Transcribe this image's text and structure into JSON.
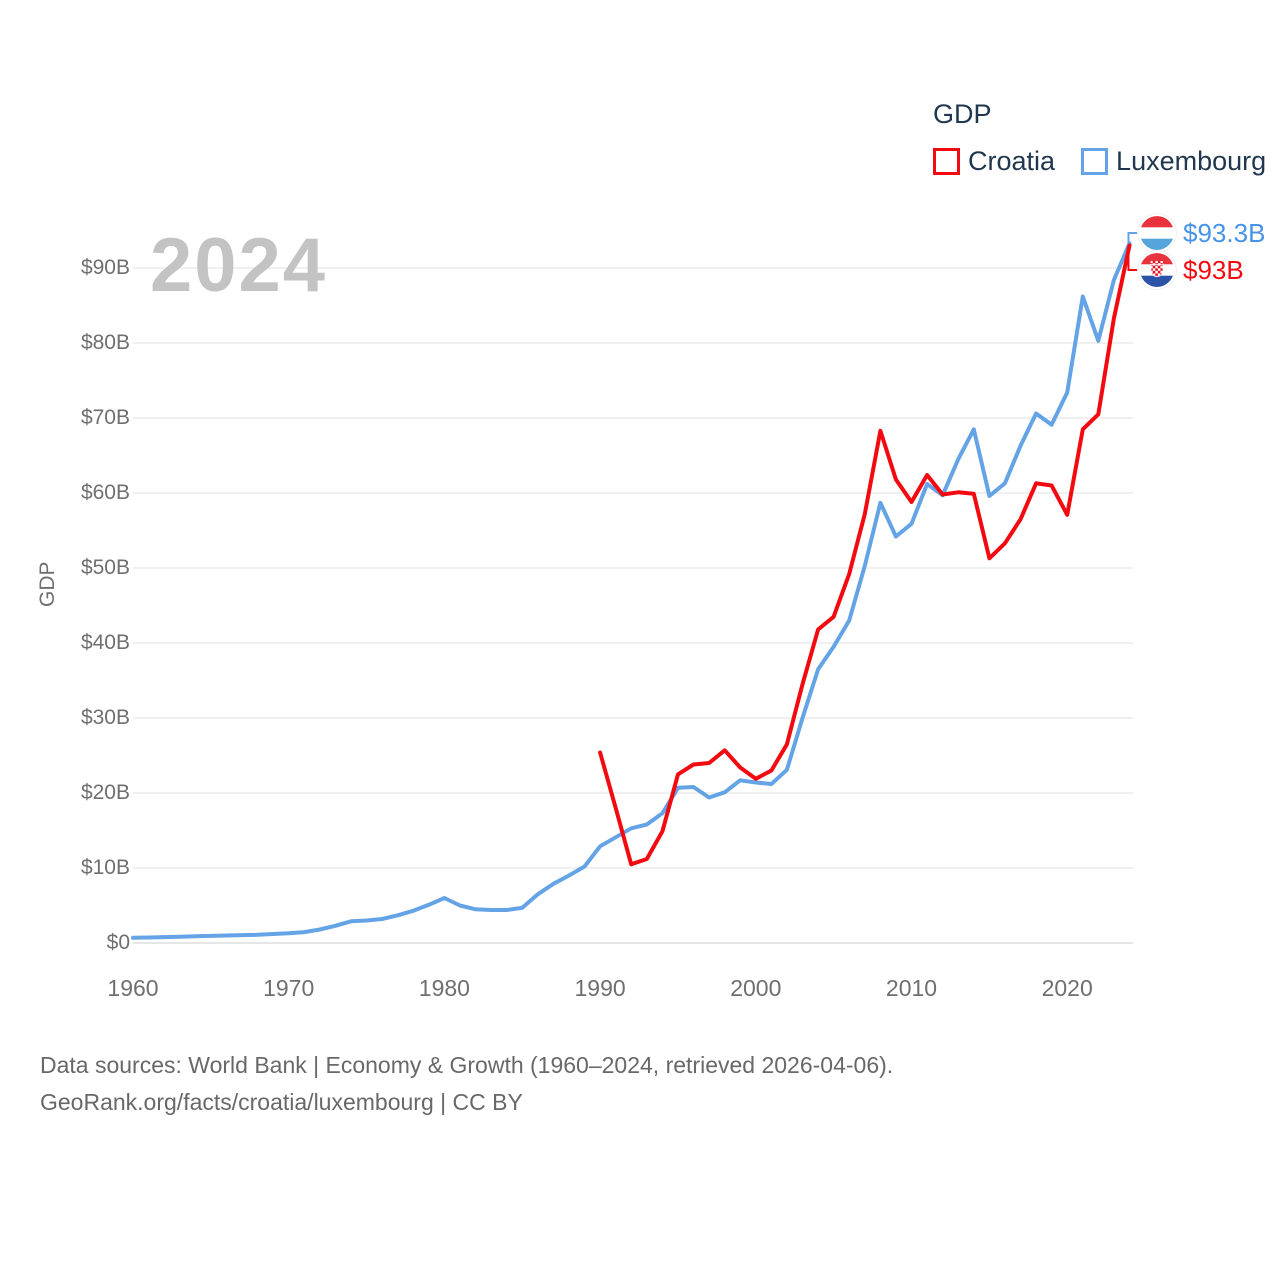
{
  "watermark": "2024",
  "legend": {
    "title": "GDP",
    "items": [
      {
        "label": "Croatia",
        "color": "#f30a10"
      },
      {
        "label": "Luxembourg",
        "color": "#64a4e6"
      }
    ]
  },
  "end_labels": [
    {
      "series": "Luxembourg",
      "value": "$93.3B",
      "color": "#4793e8"
    },
    {
      "series": "Croatia",
      "value": "$93B",
      "color": "#f30a10"
    }
  ],
  "axes": {
    "y_title": "GDP",
    "y_ticks": [
      "$0",
      "$10B",
      "$20B",
      "$30B",
      "$40B",
      "$50B",
      "$60B",
      "$70B",
      "$80B",
      "$90B"
    ],
    "x_ticks": [
      "1960",
      "1970",
      "1980",
      "1990",
      "2000",
      "2010",
      "2020"
    ]
  },
  "footer": {
    "line1": "Data sources: World Bank | Economy & Growth (1960–2024, retrieved 2026-04-06).",
    "line2": "GeoRank.org/facts/croatia/luxembourg | CC BY"
  },
  "chart_data": {
    "type": "line",
    "title": "GDP",
    "ylabel": "GDP",
    "xlabel": "",
    "x_range": [
      1960,
      2024
    ],
    "ylim": [
      0,
      96
    ],
    "y_tick_step": 10,
    "grid": true,
    "legend_position": "top-right",
    "series": [
      {
        "name": "Croatia",
        "color": "#f30a10",
        "start_year": 1990,
        "values": [
          25.4,
          18,
          10.5,
          11.2,
          14.9,
          22.5,
          23.8,
          24,
          25.7,
          23.4,
          21.9,
          23,
          26.5,
          34.5,
          41.8,
          43.5,
          49.2,
          57.2,
          68.3,
          61.8,
          58.8,
          62.4,
          59.8,
          60.1,
          59.9,
          51.3,
          53.3,
          56.5,
          61.3,
          61,
          57.1,
          68.5,
          70.5,
          83.3,
          93
        ]
      },
      {
        "name": "Luxembourg",
        "color": "#64a4e6",
        "start_year": 1960,
        "values": [
          0.7,
          0.74,
          0.78,
          0.83,
          0.9,
          0.95,
          1,
          1.05,
          1.1,
          1.2,
          1.3,
          1.45,
          1.8,
          2.3,
          2.9,
          3,
          3.2,
          3.7,
          4.3,
          5.1,
          6,
          5,
          4.5,
          4.4,
          4.4,
          4.7,
          6.5,
          7.9,
          9,
          10.2,
          12.9,
          14.1,
          15.3,
          15.8,
          17.3,
          20.7,
          20.8,
          19.4,
          20.1,
          21.7,
          21.4,
          21.2,
          23.1,
          30,
          36.5,
          39.5,
          43,
          50.3,
          58.7,
          54.2,
          55.9,
          61.2,
          59.7,
          64.5,
          68.5,
          59.6,
          61.3,
          66.3,
          70.6,
          69.1,
          73.4,
          86.2,
          80.3,
          88.4,
          93.3
        ]
      }
    ]
  }
}
